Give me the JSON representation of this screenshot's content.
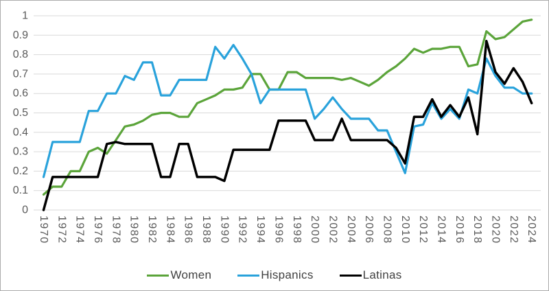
{
  "chart_data": {
    "type": "line",
    "title": "",
    "xlabel": "",
    "ylabel": "",
    "x_start": 1970,
    "x_end": 2024,
    "x_tick_step": 2,
    "ylim": [
      0,
      1
    ],
    "ytick_step": 0.1,
    "grid": "horizontal",
    "legend_position": "bottom",
    "x": [
      1970,
      1971,
      1972,
      1973,
      1974,
      1975,
      1976,
      1977,
      1978,
      1979,
      1980,
      1981,
      1982,
      1983,
      1984,
      1985,
      1986,
      1987,
      1988,
      1989,
      1990,
      1991,
      1992,
      1993,
      1994,
      1995,
      1996,
      1997,
      1998,
      1999,
      2000,
      2001,
      2002,
      2003,
      2004,
      2005,
      2006,
      2007,
      2008,
      2009,
      2010,
      2011,
      2012,
      2013,
      2014,
      2015,
      2016,
      2017,
      2018,
      2019,
      2020,
      2021,
      2022,
      2023,
      2024
    ],
    "series": [
      {
        "name": "Women",
        "color": "#5ba43a",
        "values": [
          0.08,
          0.12,
          0.12,
          0.2,
          0.2,
          0.3,
          0.32,
          0.29,
          0.36,
          0.43,
          0.44,
          0.46,
          0.49,
          0.5,
          0.5,
          0.48,
          0.48,
          0.55,
          0.57,
          0.59,
          0.62,
          0.62,
          0.63,
          0.7,
          0.7,
          0.62,
          0.62,
          0.71,
          0.71,
          0.68,
          0.68,
          0.68,
          0.68,
          0.67,
          0.68,
          0.66,
          0.64,
          0.67,
          0.71,
          0.74,
          0.78,
          0.83,
          0.81,
          0.83,
          0.83,
          0.84,
          0.84,
          0.74,
          0.75,
          0.92,
          0.88,
          0.89,
          0.93,
          0.97,
          0.98
        ]
      },
      {
        "name": "Hispanics",
        "color": "#29a2db",
        "values": [
          0.17,
          0.35,
          0.35,
          0.35,
          0.35,
          0.51,
          0.51,
          0.6,
          0.6,
          0.69,
          0.67,
          0.76,
          0.76,
          0.59,
          0.59,
          0.67,
          0.67,
          0.67,
          0.67,
          0.84,
          0.78,
          0.85,
          0.78,
          0.7,
          0.55,
          0.62,
          0.62,
          0.62,
          0.62,
          0.62,
          0.47,
          0.52,
          0.58,
          0.52,
          0.47,
          0.47,
          0.47,
          0.41,
          0.41,
          0.3,
          0.19,
          0.43,
          0.44,
          0.55,
          0.47,
          0.52,
          0.47,
          0.62,
          0.6,
          0.78,
          0.69,
          0.63,
          0.63,
          0.6,
          0.6
        ]
      },
      {
        "name": "Latinas",
        "color": "#000000",
        "values": [
          0.0,
          0.17,
          0.17,
          0.17,
          0.17,
          0.17,
          0.17,
          0.34,
          0.35,
          0.34,
          0.34,
          0.34,
          0.34,
          0.17,
          0.17,
          0.34,
          0.34,
          0.17,
          0.17,
          0.17,
          0.15,
          0.31,
          0.31,
          0.31,
          0.31,
          0.31,
          0.46,
          0.46,
          0.46,
          0.46,
          0.36,
          0.36,
          0.36,
          0.47,
          0.36,
          0.36,
          0.36,
          0.36,
          0.36,
          0.32,
          0.24,
          0.48,
          0.48,
          0.57,
          0.48,
          0.54,
          0.48,
          0.58,
          0.39,
          0.87,
          0.71,
          0.65,
          0.73,
          0.66,
          0.55
        ]
      }
    ],
    "y_tick_labels": [
      "0",
      "0.1",
      "0.2",
      "0.3",
      "0.4",
      "0.5",
      "0.6",
      "0.7",
      "0.8",
      "0.9",
      "1"
    ]
  },
  "style": {
    "grid_color": "#d9d9d9",
    "tick_label_color": "#595959",
    "legend_label_color": "#404040",
    "background": "#ffffff",
    "border_color": "#ababab"
  }
}
